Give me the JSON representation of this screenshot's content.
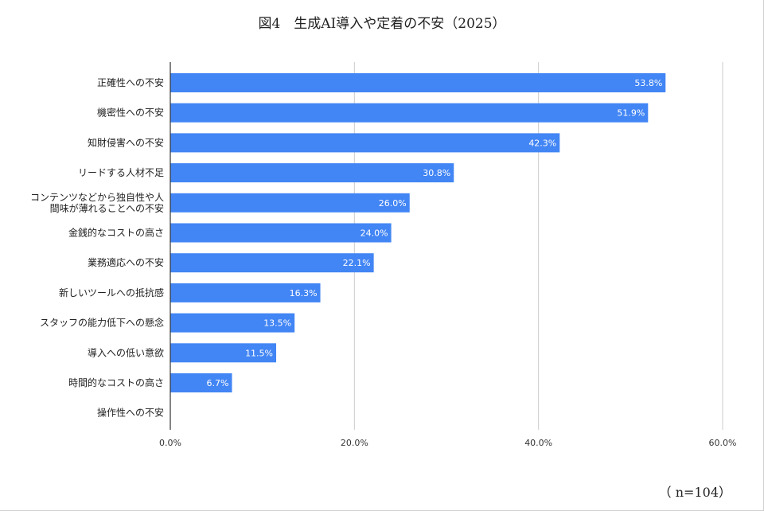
{
  "chart_data": {
    "type": "bar",
    "orientation": "horizontal",
    "title": "図4　生成AI導入や定着の不安（2025）",
    "note": "（ n=104）",
    "categories": [
      [
        "正確性への不安"
      ],
      [
        "機密性への不安"
      ],
      [
        "知財侵害への不安"
      ],
      [
        "リードする人材不足"
      ],
      [
        "コンテンツなどから独自性や人",
        "間味が薄れることへの不安"
      ],
      [
        "金銭的なコストの高さ"
      ],
      [
        "業務適応への不安"
      ],
      [
        "新しいツールへの抵抗感"
      ],
      [
        "スタッフの能力低下への懸念"
      ],
      [
        "導入への低い意欲"
      ],
      [
        "時間的なコストの高さ"
      ],
      [
        "操作性への不安"
      ]
    ],
    "values": [
      53.8,
      51.9,
      42.3,
      30.8,
      26.0,
      24.0,
      22.1,
      16.3,
      13.5,
      11.5,
      6.7,
      0
    ],
    "value_labels": [
      "53.8%",
      "51.9%",
      "42.3%",
      "30.8%",
      "26.0%",
      "24.0%",
      "22.1%",
      "16.3%",
      "13.5%",
      "11.5%",
      "6.7%",
      ""
    ],
    "xlim": [
      0,
      60
    ],
    "xticks": [
      0,
      20,
      40,
      60
    ],
    "xtick_labels": [
      "0.0%",
      "20.0%",
      "40.0%",
      "60.0%"
    ],
    "grid": true,
    "bar_color": "#4285f4",
    "grid_color": "#cccccc",
    "axis_color": "#333333"
  }
}
